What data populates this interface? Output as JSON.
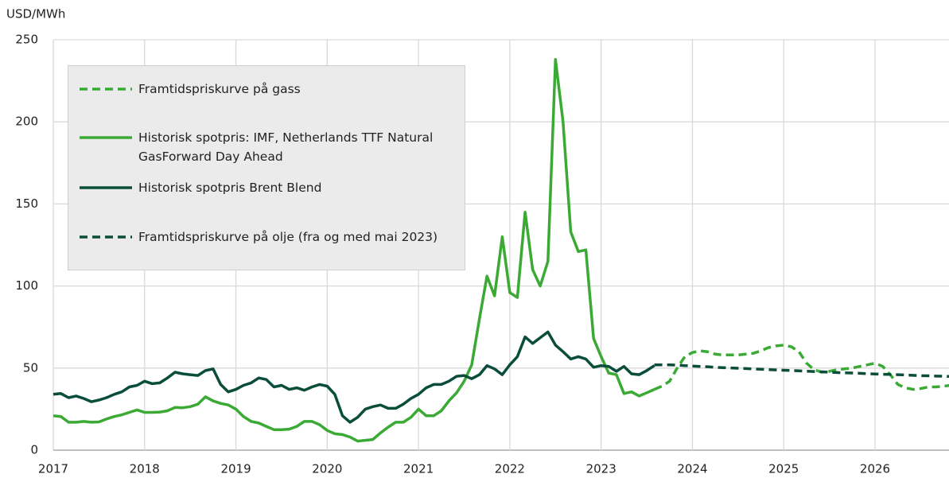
{
  "chart_data": {
    "type": "line",
    "y_axis_label": "USD/MWh",
    "xlim": [
      2017,
      2026.81
    ],
    "xticks": [
      2017,
      2018,
      2019,
      2020,
      2021,
      2022,
      2023,
      2024,
      2025,
      2026
    ],
    "ylim": [
      0,
      250
    ],
    "yticks": [
      0,
      50,
      100,
      150,
      200,
      250
    ],
    "grid": true,
    "legend": "upper left",
    "series": [
      {
        "name": "Framtidspriskurve på gass",
        "color": "#3aaa35",
        "linestyle": "dashed",
        "x": [
          2023.583,
          2023.667,
          2023.75,
          2023.833,
          2023.917,
          2024,
          2024.083,
          2024.167,
          2024.25,
          2024.333,
          2024.417,
          2024.5,
          2024.583,
          2024.667,
          2024.75,
          2024.833,
          2024.917,
          2025,
          2025.083,
          2025.167,
          2025.25,
          2025.333,
          2025.417,
          2025.5,
          2025.583,
          2025.667,
          2025.75,
          2025.833,
          2025.917,
          2026,
          2026.083,
          2026.167,
          2026.25,
          2026.333,
          2026.417,
          2026.5,
          2026.583,
          2026.667,
          2026.75,
          2026.833
        ],
        "values": [
          37,
          39,
          42,
          50,
          57,
          59.5,
          60.5,
          60,
          58.5,
          58,
          58,
          58,
          58.5,
          59,
          60.5,
          62.5,
          63.5,
          64,
          63,
          60,
          53,
          49,
          47.5,
          48,
          49,
          49.5,
          50,
          51,
          52,
          53,
          51,
          46,
          40,
          38,
          37,
          37.5,
          38.5,
          38.5,
          39,
          39.5
        ]
      },
      {
        "name": "Historisk spotpris: IMF, Netherlands TTF Natural GasForward Day Ahead",
        "color": "#3aaa35",
        "linestyle": "solid",
        "x": [
          2017,
          2017.083,
          2017.167,
          2017.25,
          2017.333,
          2017.417,
          2017.5,
          2017.583,
          2017.667,
          2017.75,
          2017.833,
          2017.917,
          2018,
          2018.083,
          2018.167,
          2018.25,
          2018.333,
          2018.417,
          2018.5,
          2018.583,
          2018.667,
          2018.75,
          2018.833,
          2018.917,
          2019,
          2019.083,
          2019.167,
          2019.25,
          2019.333,
          2019.417,
          2019.5,
          2019.583,
          2019.667,
          2019.75,
          2019.833,
          2019.917,
          2020,
          2020.083,
          2020.167,
          2020.25,
          2020.333,
          2020.417,
          2020.5,
          2020.583,
          2020.667,
          2020.75,
          2020.833,
          2020.917,
          2021,
          2021.083,
          2021.167,
          2021.25,
          2021.333,
          2021.417,
          2021.5,
          2021.583,
          2021.667,
          2021.75,
          2021.833,
          2021.917,
          2022,
          2022.083,
          2022.167,
          2022.25,
          2022.333,
          2022.417,
          2022.5,
          2022.583,
          2022.667,
          2022.75,
          2022.833,
          2022.917,
          2023,
          2023.083,
          2023.167,
          2023.25,
          2023.333,
          2023.417,
          2023.5,
          2023.583
        ],
        "values": [
          21,
          20.5,
          17,
          17,
          17.5,
          17,
          17.2,
          19,
          20.5,
          21.5,
          23,
          24.5,
          23,
          23,
          23.2,
          24,
          26,
          25.8,
          26.5,
          28,
          32.5,
          30,
          28.5,
          27.5,
          25,
          20.5,
          17.5,
          16.5,
          14.5,
          12.5,
          12.5,
          12.8,
          14.5,
          17.5,
          17.5,
          15.5,
          12,
          10,
          9.5,
          8,
          5.5,
          6,
          6.5,
          10.5,
          14,
          17,
          17,
          20,
          25,
          21,
          21,
          24,
          30,
          35,
          42,
          52,
          80,
          106,
          94,
          130,
          96,
          93,
          145,
          110,
          100,
          115,
          238,
          200,
          133,
          121,
          122,
          68,
          57,
          47,
          46,
          34.5,
          35.5,
          33,
          35,
          37
        ]
      },
      {
        "name": "Historisk spotpris Brent Blend",
        "color": "#0b4d3b",
        "linestyle": "solid",
        "x": [
          2017,
          2017.083,
          2017.167,
          2017.25,
          2017.333,
          2017.417,
          2017.5,
          2017.583,
          2017.667,
          2017.75,
          2017.833,
          2017.917,
          2018,
          2018.083,
          2018.167,
          2018.25,
          2018.333,
          2018.417,
          2018.5,
          2018.583,
          2018.667,
          2018.75,
          2018.833,
          2018.917,
          2019,
          2019.083,
          2019.167,
          2019.25,
          2019.333,
          2019.417,
          2019.5,
          2019.583,
          2019.667,
          2019.75,
          2019.833,
          2019.917,
          2020,
          2020.083,
          2020.167,
          2020.25,
          2020.333,
          2020.417,
          2020.5,
          2020.583,
          2020.667,
          2020.75,
          2020.833,
          2020.917,
          2021,
          2021.083,
          2021.167,
          2021.25,
          2021.333,
          2021.417,
          2021.5,
          2021.583,
          2021.667,
          2021.75,
          2021.833,
          2021.917,
          2022,
          2022.083,
          2022.167,
          2022.25,
          2022.333,
          2022.417,
          2022.5,
          2022.583,
          2022.667,
          2022.75,
          2022.833,
          2022.917,
          2023,
          2023.083,
          2023.167,
          2023.25,
          2023.333,
          2023.417,
          2023.5,
          2023.583
        ],
        "values": [
          34,
          34.5,
          32,
          33,
          31.5,
          29.5,
          30.5,
          32,
          34,
          35.5,
          38.5,
          39.5,
          42,
          40.5,
          41,
          44,
          47.5,
          46.5,
          46,
          45.5,
          48.5,
          49.5,
          40,
          35.5,
          37,
          39.5,
          41,
          44,
          43,
          38.5,
          39.5,
          37,
          38,
          36.5,
          38.5,
          40,
          39,
          34,
          21,
          17,
          20,
          25,
          26.5,
          27.5,
          25.5,
          25.5,
          28,
          31.5,
          34,
          38,
          40,
          40,
          42,
          45,
          45.5,
          43.5,
          46,
          51.5,
          49.5,
          46,
          52,
          57,
          69,
          65,
          68.5,
          72,
          64,
          60,
          55.5,
          57,
          55.5,
          50.5,
          51.5,
          51,
          48,
          51,
          46.5,
          46,
          48.5,
          51.5
        ]
      },
      {
        "name": "Framtidspriskurve på olje (fra og med mai 2023)",
        "color": "#0b4d3b",
        "linestyle": "dashed",
        "x": [
          2023.583,
          2023.667,
          2023.75,
          2023.833,
          2023.917,
          2024,
          2024.083,
          2024.167,
          2024.25,
          2024.333,
          2024.417,
          2024.5,
          2024.583,
          2024.667,
          2024.75,
          2024.833,
          2024.917,
          2025,
          2025.083,
          2025.167,
          2025.25,
          2025.333,
          2025.417,
          2025.5,
          2025.583,
          2025.667,
          2025.75,
          2025.833,
          2025.917,
          2026,
          2026.083,
          2026.167,
          2026.25,
          2026.333,
          2026.417,
          2026.5,
          2026.583,
          2026.667,
          2026.75,
          2026.833
        ],
        "values": [
          52,
          52,
          52,
          51.8,
          51.5,
          51.2,
          51,
          50.8,
          50.5,
          50.3,
          50.1,
          49.9,
          49.7,
          49.5,
          49.3,
          49.1,
          48.9,
          48.7,
          48.5,
          48.3,
          48.1,
          47.9,
          47.7,
          47.5,
          47.3,
          47.1,
          47,
          46.8,
          46.6,
          46.4,
          46.2,
          46.1,
          46,
          45.8,
          45.6,
          45.4,
          45.3,
          45.1,
          45,
          44.9
        ]
      }
    ]
  }
}
